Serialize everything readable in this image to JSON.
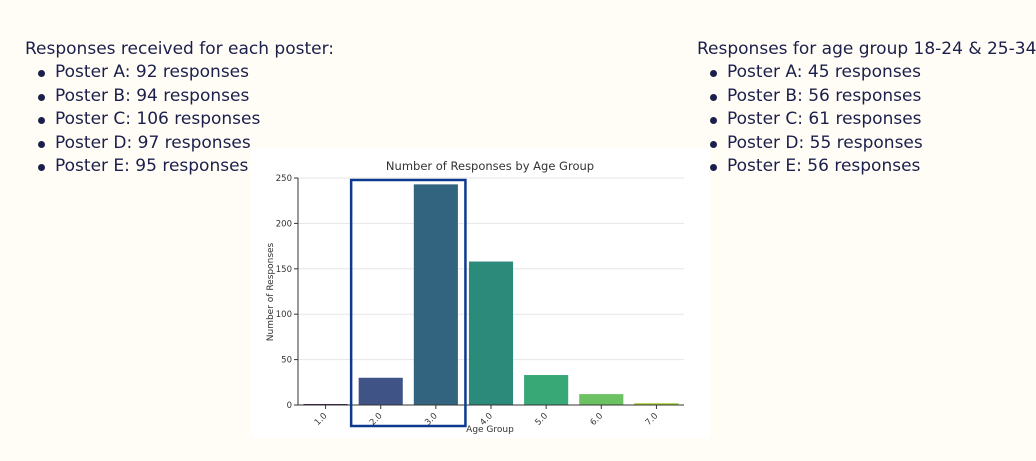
{
  "left_panel": {
    "title": "Responses received for each poster:",
    "items": [
      "Poster A: 92 responses",
      "Poster B: 94 responses",
      "Poster C: 106 responses",
      "Poster D: 97 responses",
      "Poster E: 95 responses"
    ]
  },
  "right_panel": {
    "title": "Responses for age group 18-24 & 25-34",
    "items": [
      "Poster A: 45 responses",
      "Poster B: 56 responses",
      "Poster C: 61 responses",
      "Poster D: 55 responses",
      "Poster E: 56 responses"
    ]
  },
  "chart_data": {
    "type": "bar",
    "title": "Number of Responses by Age Group",
    "xlabel": "Age Group",
    "ylabel": "Number of Responses",
    "categories": [
      "1.0",
      "2.0",
      "3.0",
      "4.0",
      "5.0",
      "6.0",
      "7.0"
    ],
    "values": [
      1,
      30,
      243,
      158,
      33,
      12,
      2
    ],
    "colors": [
      "#3d1f5e",
      "#3f5386",
      "#33647f",
      "#2c8a7b",
      "#38a877",
      "#6cc162",
      "#a4cc3a"
    ],
    "ylim": [
      0,
      250
    ],
    "yticks": [
      0,
      50,
      100,
      150,
      200,
      250
    ],
    "grid": "horizontal",
    "highlight": {
      "categories": [
        "2.0",
        "3.0"
      ],
      "color": "#0d3a8f"
    }
  }
}
